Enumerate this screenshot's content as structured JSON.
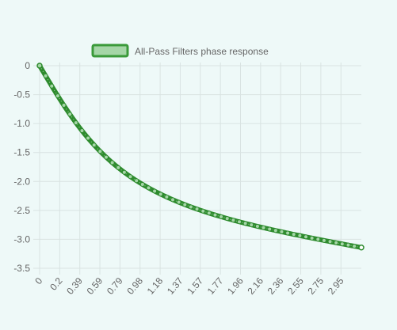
{
  "chart_data": {
    "type": "line",
    "legend": {
      "label": "All-Pass Filters phase response",
      "position": "top"
    },
    "series": [
      {
        "name": "All-Pass Filters phase response",
        "color": "#2e8b2e",
        "fill_color": "#a5d6a7",
        "formula_note": "phase(w) = -w - 2*atan(a*sin(w)/(1-a*cos(w))), a=0.5",
        "x_start": 0,
        "x_end": 3.1416,
        "point_count": 320
      }
    ],
    "x_tick_labels": [
      "0",
      "0.2",
      "0.39",
      "0.59",
      "0.79",
      "0.98",
      "1.18",
      "1.37",
      "1.57",
      "1.77",
      "1.96",
      "2.16",
      "2.36",
      "2.55",
      "2.75",
      "2.95"
    ],
    "y_tick_labels": [
      "0",
      "-0.5",
      "-1.0",
      "-1.5",
      "-2.0",
      "-2.5",
      "-3.0",
      "-3.5"
    ],
    "ylim": [
      -3.5,
      0
    ],
    "xlim": [
      0,
      3.1416
    ],
    "grid": true,
    "xlabel": "",
    "ylabel": "",
    "title": ""
  }
}
